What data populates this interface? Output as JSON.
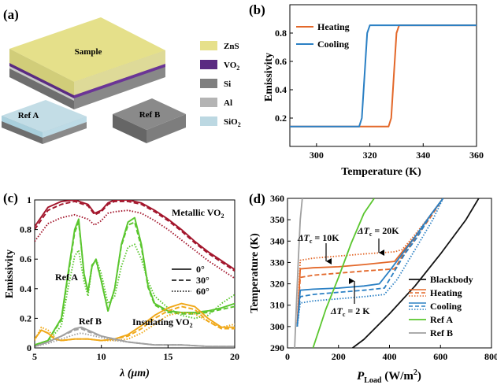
{
  "panel_a": {
    "label": "(a)",
    "sample_label": "Sample",
    "ref_a_label": "Ref A",
    "ref_b_label": "Ref B",
    "legend": [
      {
        "name": "ZnS",
        "color": "#e6e08a"
      },
      {
        "name": "VO",
        "sub": "2",
        "color": "#5a2a82"
      },
      {
        "name": "Si",
        "color": "#7f7f7f"
      },
      {
        "name": "Al",
        "color": "#b4b4b4"
      },
      {
        "name": "SiO",
        "sub": "2",
        "color": "#bcd8e2"
      }
    ]
  },
  "chart_data": [
    {
      "panel": "(b)",
      "type": "line",
      "xlabel": "Temperature (K)",
      "ylabel": "Emissivity",
      "xlim": [
        290,
        360
      ],
      "ylim": [
        0.0,
        1.0
      ],
      "xticks": [
        300,
        320,
        340,
        360
      ],
      "yticks": [
        0.2,
        0.4,
        0.6,
        0.8
      ],
      "series": [
        {
          "name": "Heating",
          "color": "#e3682a",
          "x": [
            290,
            327,
            328,
            329,
            330,
            331,
            360
          ],
          "y": [
            0.14,
            0.14,
            0.2,
            0.5,
            0.8,
            0.855,
            0.855
          ]
        },
        {
          "name": "Cooling",
          "color": "#2b80c4",
          "x": [
            290,
            316,
            317,
            318,
            319,
            320,
            360
          ],
          "y": [
            0.14,
            0.14,
            0.2,
            0.5,
            0.8,
            0.855,
            0.855
          ]
        }
      ]
    },
    {
      "panel": "(c)",
      "type": "line",
      "xlabel": "λ (μm)",
      "ylabel": "Emissivity",
      "xlim": [
        5,
        20
      ],
      "ylim": [
        0,
        1
      ],
      "xticks": [
        5,
        10,
        15,
        20
      ],
      "yticks": [
        0,
        0.2,
        0.4,
        0.6,
        0.8,
        1
      ],
      "annotations": [
        "Metallic VO",
        "Ref A",
        "Ref B",
        "Insulating VO"
      ],
      "angle_legend": [
        "0°",
        "30°",
        "60°"
      ],
      "series": [
        {
          "name": "Metallic VO2 0°",
          "color": "#a3162c",
          "style": "solid",
          "x": [
            5,
            6,
            7,
            8,
            9,
            9.5,
            10,
            10.5,
            11,
            12,
            13,
            14,
            15,
            16,
            17,
            18,
            19,
            20
          ],
          "y": [
            0.82,
            0.95,
            0.99,
            1.0,
            0.97,
            0.91,
            0.93,
            0.98,
            1.0,
            1.0,
            0.98,
            0.93,
            0.87,
            0.8,
            0.72,
            0.65,
            0.59,
            0.53
          ]
        },
        {
          "name": "Metallic VO2 30°",
          "color": "#a3162c",
          "style": "dashed",
          "x": [
            5,
            6,
            7,
            8,
            9,
            9.5,
            10,
            10.5,
            11,
            12,
            13,
            14,
            15,
            16,
            17,
            18,
            19,
            20
          ],
          "y": [
            0.8,
            0.93,
            0.97,
            0.99,
            0.96,
            0.9,
            0.92,
            0.97,
            0.99,
            0.99,
            0.97,
            0.92,
            0.86,
            0.79,
            0.71,
            0.64,
            0.58,
            0.52
          ]
        },
        {
          "name": "Metallic VO2 60°",
          "color": "#a3162c",
          "style": "dotted",
          "x": [
            5,
            6,
            7,
            8,
            9,
            9.5,
            10,
            10.5,
            11,
            12,
            13,
            14,
            15,
            16,
            17,
            18,
            19,
            20
          ],
          "y": [
            0.72,
            0.84,
            0.88,
            0.9,
            0.87,
            0.83,
            0.86,
            0.91,
            0.92,
            0.93,
            0.91,
            0.86,
            0.8,
            0.73,
            0.66,
            0.59,
            0.53,
            0.47
          ]
        },
        {
          "name": "Ref A 0°",
          "color": "#5ac62e",
          "style": "solid",
          "x": [
            5,
            6,
            7,
            7.5,
            8,
            8.3,
            8.7,
            9,
            9.3,
            9.6,
            10,
            10.5,
            11,
            11.5,
            12,
            12.5,
            13,
            13.5,
            14,
            15,
            16,
            17,
            18,
            19,
            20
          ],
          "y": [
            0.02,
            0.05,
            0.2,
            0.5,
            0.8,
            0.87,
            0.5,
            0.38,
            0.55,
            0.6,
            0.45,
            0.25,
            0.4,
            0.7,
            0.85,
            0.88,
            0.7,
            0.42,
            0.3,
            0.25,
            0.24,
            0.24,
            0.25,
            0.27,
            0.3
          ]
        },
        {
          "name": "Ref A 30°",
          "color": "#5ac62e",
          "style": "dashed",
          "x": [
            5,
            6,
            7,
            7.5,
            8,
            8.3,
            8.7,
            9,
            9.3,
            9.6,
            10,
            10.5,
            11,
            11.5,
            12,
            12.5,
            13,
            13.5,
            14,
            15,
            16,
            17,
            18,
            19,
            20
          ],
          "y": [
            0.02,
            0.05,
            0.19,
            0.48,
            0.78,
            0.85,
            0.5,
            0.38,
            0.56,
            0.59,
            0.45,
            0.25,
            0.4,
            0.69,
            0.83,
            0.85,
            0.68,
            0.41,
            0.29,
            0.24,
            0.23,
            0.23,
            0.24,
            0.26,
            0.28
          ]
        },
        {
          "name": "Ref A 60°",
          "color": "#5ac62e",
          "style": "dotted",
          "x": [
            5,
            6,
            7,
            7.5,
            8,
            8.3,
            8.7,
            9,
            9.3,
            9.6,
            10,
            10.5,
            11,
            11.5,
            12,
            12.5,
            13,
            13.5,
            14,
            15,
            16,
            17,
            18,
            19,
            20
          ],
          "y": [
            0.02,
            0.04,
            0.15,
            0.4,
            0.62,
            0.66,
            0.45,
            0.35,
            0.55,
            0.6,
            0.5,
            0.3,
            0.35,
            0.55,
            0.68,
            0.7,
            0.6,
            0.45,
            0.35,
            0.27,
            0.22,
            0.2,
            0.22,
            0.3,
            0.36
          ]
        },
        {
          "name": "Insulating VO2 0°",
          "color": "#f0a818",
          "style": "solid",
          "x": [
            5,
            5.5,
            6,
            6.5,
            7,
            8,
            9,
            10,
            11,
            12,
            13,
            14,
            15,
            16,
            17,
            18,
            19,
            20
          ],
          "y": [
            0.06,
            0.12,
            0.1,
            0.06,
            0.05,
            0.06,
            0.06,
            0.05,
            0.06,
            0.09,
            0.15,
            0.22,
            0.27,
            0.3,
            0.28,
            0.2,
            0.14,
            0.14
          ]
        },
        {
          "name": "Insulating VO2 30°",
          "color": "#f0a818",
          "style": "dashed",
          "x": [
            5,
            5.5,
            6,
            6.5,
            7,
            8,
            9,
            10,
            11,
            12,
            13,
            14,
            15,
            16,
            17,
            18,
            19,
            20
          ],
          "y": [
            0.06,
            0.12,
            0.1,
            0.06,
            0.05,
            0.06,
            0.06,
            0.05,
            0.06,
            0.08,
            0.13,
            0.2,
            0.25,
            0.28,
            0.26,
            0.18,
            0.13,
            0.13
          ]
        },
        {
          "name": "Insulating VO2 60°",
          "color": "#f0a818",
          "style": "dotted",
          "x": [
            5,
            5.5,
            6,
            6.5,
            7,
            8,
            9,
            10,
            11,
            12,
            13,
            14,
            15,
            16,
            17,
            18,
            19,
            20
          ],
          "y": [
            0.05,
            0.14,
            0.12,
            0.07,
            0.05,
            0.06,
            0.06,
            0.05,
            0.05,
            0.06,
            0.1,
            0.16,
            0.22,
            0.24,
            0.23,
            0.18,
            0.14,
            0.16
          ]
        },
        {
          "name": "Ref B 0°",
          "color": "#a0a0a0",
          "style": "solid",
          "x": [
            5,
            6,
            7,
            8,
            8.5,
            9,
            10,
            11,
            12,
            13,
            14,
            16,
            18,
            20
          ],
          "y": [
            0.01,
            0.04,
            0.08,
            0.13,
            0.14,
            0.12,
            0.08,
            0.06,
            0.04,
            0.03,
            0.02,
            0.02,
            0.01,
            0.01
          ]
        },
        {
          "name": "Ref B 30°",
          "color": "#a0a0a0",
          "style": "dashed",
          "x": [
            5,
            6,
            7,
            8,
            8.5,
            9,
            10,
            11,
            12,
            13,
            14,
            16,
            18,
            20
          ],
          "y": [
            0.01,
            0.04,
            0.08,
            0.12,
            0.13,
            0.11,
            0.08,
            0.06,
            0.04,
            0.03,
            0.02,
            0.02,
            0.01,
            0.01
          ]
        },
        {
          "name": "Ref B 60°",
          "color": "#a0a0a0",
          "style": "dotted",
          "x": [
            5,
            6,
            7,
            8,
            8.5,
            9,
            10,
            11,
            12,
            13,
            14,
            16,
            18,
            20
          ],
          "y": [
            0.01,
            0.03,
            0.06,
            0.09,
            0.1,
            0.09,
            0.07,
            0.05,
            0.04,
            0.03,
            0.02,
            0.02,
            0.01,
            0.01
          ]
        }
      ]
    },
    {
      "panel": "(d)",
      "type": "line",
      "xlabel": "P",
      "xlabel_sub": "Load",
      "xlabel_unit": " (W/m",
      "xlabel_sup": "2",
      "xlabel_end": ")",
      "ylabel": "Temperature (K)",
      "xlim": [
        0,
        800
      ],
      "ylim": [
        290,
        360
      ],
      "xticks": [
        0,
        200,
        400,
        600,
        800
      ],
      "yticks": [
        290,
        300,
        310,
        320,
        330,
        340,
        350,
        360
      ],
      "annotations": [
        {
          "text": "ΔT",
          "sub": "c",
          "rest": " = 10K"
        },
        {
          "text": "ΔT",
          "sub": "c",
          "rest": " = 20K"
        },
        {
          "text": "ΔT",
          "sub": "c",
          "rest": " = 2 K"
        }
      ],
      "series": [
        {
          "name": "Blackbody",
          "color": "#111111",
          "style": "solid",
          "x": [
            255,
            300,
            400,
            500,
            600,
            700,
            750
          ],
          "y": [
            290,
            294,
            306,
            319,
            334,
            350,
            360
          ]
        },
        {
          "name": "Heating 0°",
          "color": "#e3682a",
          "style": "solid",
          "x": [
            38,
            50,
            100,
            200,
            300,
            420,
            450,
            500,
            560,
            610
          ],
          "y": [
            300,
            327,
            327.5,
            328,
            329,
            330.5,
            335,
            342,
            352,
            360
          ]
        },
        {
          "name": "Heating 30°",
          "color": "#e3682a",
          "style": "dashed",
          "x": [
            38,
            50,
            100,
            200,
            300,
            420,
            450,
            500,
            560,
            610
          ],
          "y": [
            300,
            323,
            324,
            325,
            326,
            327,
            333,
            341,
            351,
            360
          ]
        },
        {
          "name": "Heating 60°",
          "color": "#e3682a",
          "style": "dotted",
          "x": [
            38,
            50,
            100,
            200,
            300,
            420,
            450,
            500,
            560,
            610
          ],
          "y": [
            300,
            331,
            332,
            333,
            334,
            335,
            336,
            343,
            352,
            360
          ]
        },
        {
          "name": "Cooling 0°",
          "color": "#2b80c4",
          "style": "solid",
          "x": [
            38,
            50,
            100,
            200,
            300,
            360,
            400,
            450,
            500,
            560,
            610
          ],
          "y": [
            300,
            317,
            317.5,
            318,
            319,
            320,
            326,
            334,
            342,
            352,
            360
          ]
        },
        {
          "name": "Cooling 30°",
          "color": "#2b80c4",
          "style": "dashed",
          "x": [
            38,
            50,
            100,
            200,
            300,
            380,
            420,
            460,
            510,
            560,
            610
          ],
          "y": [
            300,
            314,
            315,
            316,
            317,
            318,
            326,
            334,
            342,
            352,
            360
          ]
        },
        {
          "name": "Cooling 60°",
          "color": "#2b80c4",
          "style": "dotted",
          "x": [
            38,
            50,
            100,
            200,
            300,
            380,
            430,
            470,
            520,
            570,
            610
          ],
          "y": [
            300,
            311,
            312,
            313,
            314,
            315,
            322,
            330,
            340,
            350,
            360
          ]
        },
        {
          "name": "Ref A",
          "color": "#5ac62e",
          "style": "solid",
          "x": [
            100,
            150,
            200,
            250,
            300,
            340
          ],
          "y": [
            290,
            308,
            323,
            339,
            353,
            360
          ]
        },
        {
          "name": "Ref B",
          "color": "#a0a0a0",
          "style": "solid",
          "x": [
            28,
            35,
            42,
            50,
            58
          ],
          "y": [
            290,
            310,
            330,
            350,
            360
          ]
        }
      ]
    }
  ]
}
